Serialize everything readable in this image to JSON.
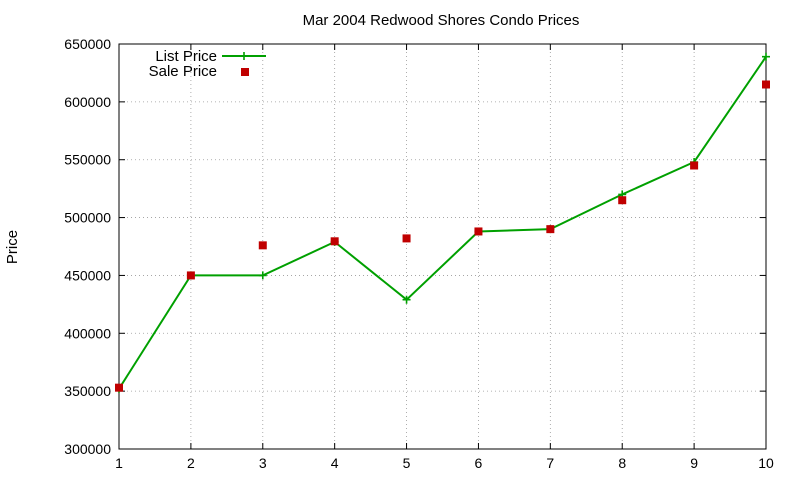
{
  "chart_data": {
    "type": "line",
    "title": "Mar 2004 Redwood Shores Condo Prices",
    "xlabel": "",
    "ylabel": "Price",
    "x": [
      1,
      2,
      3,
      4,
      5,
      6,
      7,
      8,
      9,
      10
    ],
    "xlim": [
      1,
      10
    ],
    "ylim": [
      300000,
      650000
    ],
    "xticks": [
      "1",
      "2",
      "3",
      "4",
      "5",
      "6",
      "7",
      "8",
      "9",
      "10"
    ],
    "yticks": [
      "300000",
      "350000",
      "400000",
      "450000",
      "500000",
      "550000",
      "600000",
      "650000"
    ],
    "grid": true,
    "legend_position": "top-left",
    "series": [
      {
        "name": "List Price",
        "style": "line-with-plus-markers",
        "color": "#00a000",
        "values": [
          352000,
          450000,
          450000,
          479000,
          429000,
          488000,
          490000,
          520000,
          548000,
          639000
        ]
      },
      {
        "name": "Sale Price",
        "style": "square-points",
        "color": "#c00000",
        "values": [
          353000,
          450000,
          476000,
          479500,
          482000,
          488000,
          490000,
          515000,
          545000,
          615000
        ]
      }
    ]
  }
}
